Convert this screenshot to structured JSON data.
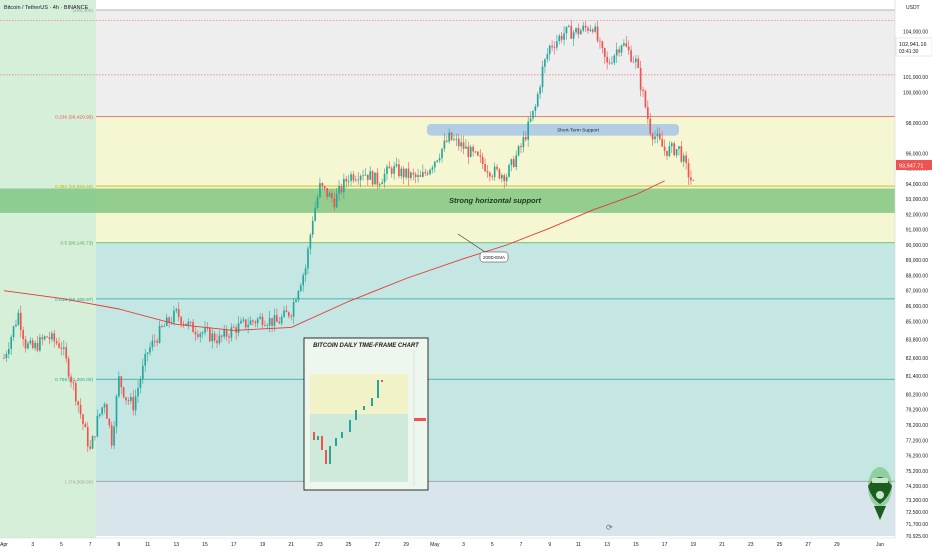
{
  "header": {
    "symbol_title": "Bitcoin / TetherUS · 4h · BINANCE",
    "currency": "USDT",
    "last_price": "102,941.16",
    "countdown": "03:41:30",
    "current_price": "93,947.71"
  },
  "colors": {
    "up": "#26a69a",
    "down": "#ef5350",
    "ema": "#e53935",
    "support_band": "#81c784",
    "support_pill": "#a7c7e7",
    "fib_green_zone": "#b2dfdb",
    "fib_yellow_zone": "#f0f4c3",
    "fib_top_zone": "#e8e8e8"
  },
  "annotations": {
    "strong_support": "Strong horizontal support",
    "short_term_support": "Short-Term Support",
    "ema_label": "200D-EMA",
    "inset_title": "BITCOIN DAILY TIME-FRAME  CHART"
  },
  "chart_data": {
    "type": "candlestick",
    "timeframe": "4h",
    "x_ticks": [
      "Apr",
      "3",
      "5",
      "7",
      "9",
      "11",
      "13",
      "15",
      "17",
      "19",
      "21",
      "23",
      "25",
      "27",
      "29",
      "May",
      "3",
      "5",
      "7",
      "9",
      "11",
      "13",
      "15",
      "17",
      "19",
      "21",
      "23",
      "25",
      "27",
      "29",
      "Jun"
    ],
    "y_ticks": [
      "104,000.00",
      "102,600.00",
      "101,000.00",
      "100,000.00",
      "98,000.00",
      "96,000.00",
      "95,000.00",
      "94,000.00",
      "93,000.00",
      "92,000.00",
      "91,000.00",
      "90,000.00",
      "89,000.00",
      "88,000.00",
      "87,000.00",
      "86,000.00",
      "85,000.00",
      "83,800.00",
      "82,600.00",
      "81,400.00",
      "80,200.00",
      "79,200.00",
      "78,200.00",
      "77,200.00",
      "76,200.00",
      "75,200.00",
      "74,200.00",
      "73,300.00",
      "72,500.00",
      "71,700.00",
      "70,925.00"
    ],
    "y_tick_values": [
      104000,
      102600,
      101000,
      100000,
      98000,
      96000,
      95000,
      94000,
      93000,
      92000,
      91000,
      90000,
      89000,
      88000,
      87000,
      86000,
      85000,
      83800,
      82600,
      81400,
      80200,
      79200,
      78200,
      77200,
      76200,
      75200,
      74200,
      73300,
      72500,
      71700,
      70925
    ],
    "ylim": [
      70925,
      105400
    ],
    "xlim_days": [
      "2025-04-01",
      "2025-06-01"
    ],
    "fib_levels": [
      {
        "ratio": 0,
        "price": 105400,
        "label": "(105,400)"
      },
      {
        "ratio": 0.236,
        "price": 98429.95,
        "label": "0.236 (98,429.95)"
      },
      {
        "ratio": 0.382,
        "price": 93859.48,
        "label": "0.382 (93,859.48)"
      },
      {
        "ratio": 0.5,
        "price": 90145.73,
        "label": "0.5 (90,145.73)"
      },
      {
        "ratio": 0.618,
        "price": 86468.97,
        "label": "0.618 (86,468.97)"
      },
      {
        "ratio": 0.786,
        "price": 81200,
        "label": "0.786 (81,200.00)"
      },
      {
        "ratio": 1,
        "price": 74508,
        "label": "1 (74,508.00)"
      }
    ],
    "dotted_levels": [
      104700,
      101150
    ],
    "support_band": [
      92100,
      93700
    ],
    "short_term_support_band": [
      97300,
      97800
    ],
    "close_path": [
      [
        "2025-04-01",
        82600
      ],
      [
        "2025-04-02",
        85500
      ],
      [
        "2025-04-02T12",
        83500
      ],
      [
        "2025-04-03",
        83200
      ],
      [
        "2025-04-04",
        84000
      ],
      [
        "2025-04-05",
        83400
      ],
      [
        "2025-04-06",
        80200
      ],
      [
        "2025-04-06T12",
        78300
      ],
      [
        "2025-04-07",
        76500
      ],
      [
        "2025-04-07T12",
        78500
      ],
      [
        "2025-04-08",
        79800
      ],
      [
        "2025-04-08T12",
        77200
      ],
      [
        "2025-04-09",
        81200
      ],
      [
        "2025-04-09T12",
        80000
      ],
      [
        "2025-04-10",
        79500
      ],
      [
        "2025-04-11",
        83000
      ],
      [
        "2025-04-12",
        84500
      ],
      [
        "2025-04-13",
        85500
      ],
      [
        "2025-04-14",
        84600
      ],
      [
        "2025-04-15",
        84200
      ],
      [
        "2025-04-16",
        83800
      ],
      [
        "2025-04-17",
        84500
      ],
      [
        "2025-04-18",
        84900
      ],
      [
        "2025-04-19",
        85200
      ],
      [
        "2025-04-20",
        84900
      ],
      [
        "2025-04-21",
        85700
      ],
      [
        "2025-04-21T12",
        87300
      ],
      [
        "2025-04-22",
        88500
      ],
      [
        "2025-04-22T12",
        91800
      ],
      [
        "2025-04-23",
        93800
      ],
      [
        "2025-04-24",
        92900
      ],
      [
        "2025-04-25",
        94500
      ],
      [
        "2025-04-26",
        94800
      ],
      [
        "2025-04-27",
        94200
      ],
      [
        "2025-04-28",
        95000
      ],
      [
        "2025-04-29",
        94600
      ],
      [
        "2025-04-30",
        94300
      ],
      [
        "2025-05-01",
        95600
      ],
      [
        "2025-05-02",
        97000
      ],
      [
        "2025-05-03",
        96400
      ],
      [
        "2025-05-04",
        95600
      ],
      [
        "2025-05-05",
        94800
      ],
      [
        "2025-05-06",
        94600
      ],
      [
        "2025-05-07",
        96400
      ],
      [
        "2025-05-08",
        99000
      ],
      [
        "2025-05-08T12",
        101500
      ],
      [
        "2025-05-09",
        103000
      ],
      [
        "2025-05-10",
        103900
      ],
      [
        "2025-05-11",
        104000
      ],
      [
        "2025-05-12",
        104400
      ],
      [
        "2025-05-12T12",
        102900
      ],
      [
        "2025-05-13",
        101800
      ],
      [
        "2025-05-14",
        103300
      ],
      [
        "2025-05-15",
        102000
      ],
      [
        "2025-05-16",
        97600
      ],
      [
        "2025-05-17",
        96200
      ],
      [
        "2025-05-18",
        96300
      ],
      [
        "2025-05-18T12",
        95000
      ],
      [
        "2025-05-19",
        93950
      ]
    ],
    "ema_200": [
      [
        "2025-04-01",
        87000
      ],
      [
        "2025-04-05",
        86500
      ],
      [
        "2025-04-09",
        85800
      ],
      [
        "2025-04-13",
        84800
      ],
      [
        "2025-04-17",
        84400
      ],
      [
        "2025-04-21",
        84600
      ],
      [
        "2025-04-25",
        86300
      ],
      [
        "2025-04-29",
        87800
      ],
      [
        "2025-05-03",
        89100
      ],
      [
        "2025-05-06",
        90000
      ],
      [
        "2025-05-09",
        91100
      ],
      [
        "2025-05-12",
        92300
      ],
      [
        "2025-05-15",
        93300
      ],
      [
        "2025-05-17",
        94200
      ]
    ]
  }
}
